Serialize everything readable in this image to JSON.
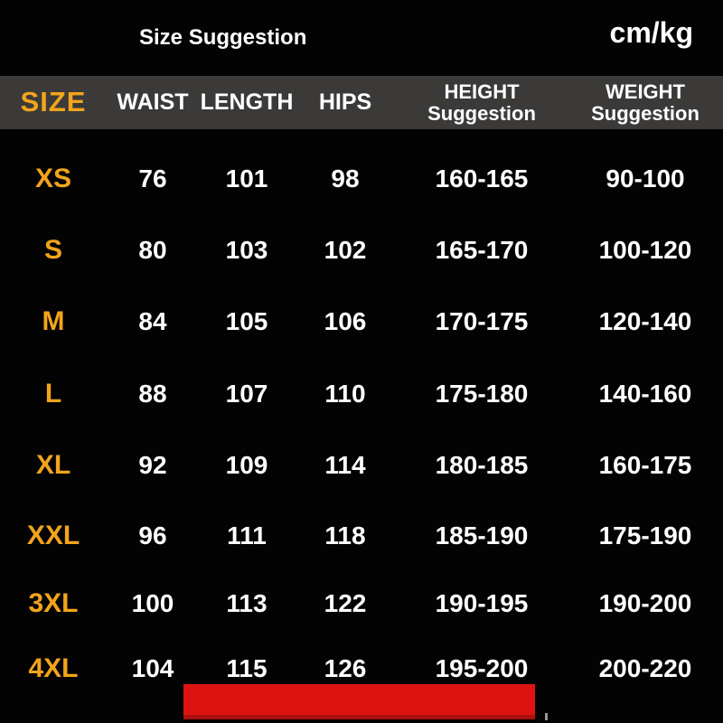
{
  "colors": {
    "background": "#030303",
    "accent_orange": "#f2a41b",
    "header_band": "#3b3a39",
    "red_bar": "#dd1311",
    "text": "#ffffff"
  },
  "header": {
    "title": "Size Suggestion",
    "unit": "cm/kg"
  },
  "chart_data": {
    "type": "table",
    "title": "Size Suggestion",
    "unit": "cm/kg",
    "columns": [
      {
        "label": "SIZE",
        "sublabel": ""
      },
      {
        "label": "WAIST",
        "sublabel": ""
      },
      {
        "label": "LENGTH",
        "sublabel": ""
      },
      {
        "label": "HIPS",
        "sublabel": ""
      },
      {
        "label": "HEIGHT",
        "sublabel": "Suggestion"
      },
      {
        "label": "WEIGHT",
        "sublabel": "Suggestion"
      }
    ],
    "rows": [
      {
        "size": "XS",
        "values": [
          "76",
          "101",
          "98",
          "160-165",
          "90-100"
        ]
      },
      {
        "size": "S",
        "values": [
          "80",
          "103",
          "102",
          "165-170",
          "100-120"
        ]
      },
      {
        "size": "M",
        "values": [
          "84",
          "105",
          "106",
          "170-175",
          "120-140"
        ]
      },
      {
        "size": "L",
        "values": [
          "88",
          "107",
          "110",
          "175-180",
          "140-160"
        ]
      },
      {
        "size": "XL",
        "values": [
          "92",
          "109",
          "114",
          "180-185",
          "160-175"
        ]
      },
      {
        "size": "XXL",
        "values": [
          "96",
          "111",
          "118",
          "185-190",
          "175-190"
        ]
      },
      {
        "size": "3XL",
        "values": [
          "100",
          "113",
          "122",
          "190-195",
          "190-200"
        ]
      },
      {
        "size": "4XL",
        "values": [
          "104",
          "115",
          "126",
          "195-200",
          "200-220"
        ]
      }
    ]
  }
}
